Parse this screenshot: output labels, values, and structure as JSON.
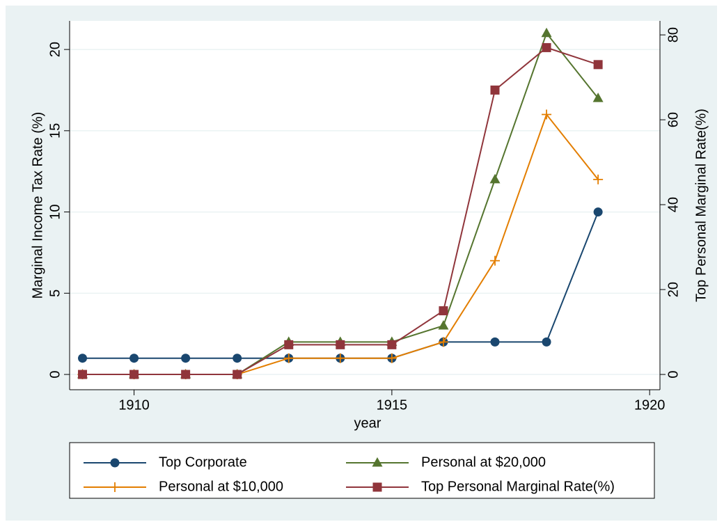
{
  "chart_data": {
    "type": "line",
    "x": [
      1909,
      1910,
      1911,
      1912,
      1913,
      1914,
      1915,
      1916,
      1917,
      1918,
      1919
    ],
    "xlabel": "year",
    "ylabel": "Marginal Income Tax Rate (%)",
    "y2label": "Top Personal Marginal Rate(%)",
    "xlim": [
      1908.75,
      1920.2
    ],
    "xticks": [
      1910,
      1915,
      1920
    ],
    "ylim": [
      -0.94,
      21.76
    ],
    "yticks": [
      0,
      5,
      10,
      15,
      20
    ],
    "y2lim": [
      -3.6,
      83.3
    ],
    "y2ticks": [
      0,
      20,
      40,
      60,
      80
    ],
    "grid": true,
    "series": [
      {
        "name": "Top Corporate",
        "color": "#1a476f",
        "marker": "circle",
        "values": [
          1,
          1,
          1,
          1,
          1,
          1,
          1,
          2,
          2,
          2,
          10
        ]
      },
      {
        "name": "Personal at $20,000",
        "color": "#55752f",
        "marker": "triangle",
        "values": [
          0,
          0,
          0,
          0,
          2,
          2,
          2,
          3,
          12,
          21,
          17
        ]
      },
      {
        "name": "Personal at $10,000",
        "color": "#e37e00",
        "marker": "plus",
        "values": [
          0,
          0,
          0,
          0,
          1,
          1,
          1,
          2,
          7,
          16,
          12
        ]
      },
      {
        "name": "Top Personal Marginal Rate(%)",
        "color": "#90353b",
        "marker": "square",
        "axis": "y2",
        "values": [
          0,
          0,
          0,
          0,
          7,
          7,
          7,
          15,
          67,
          77,
          73
        ]
      }
    ]
  }
}
